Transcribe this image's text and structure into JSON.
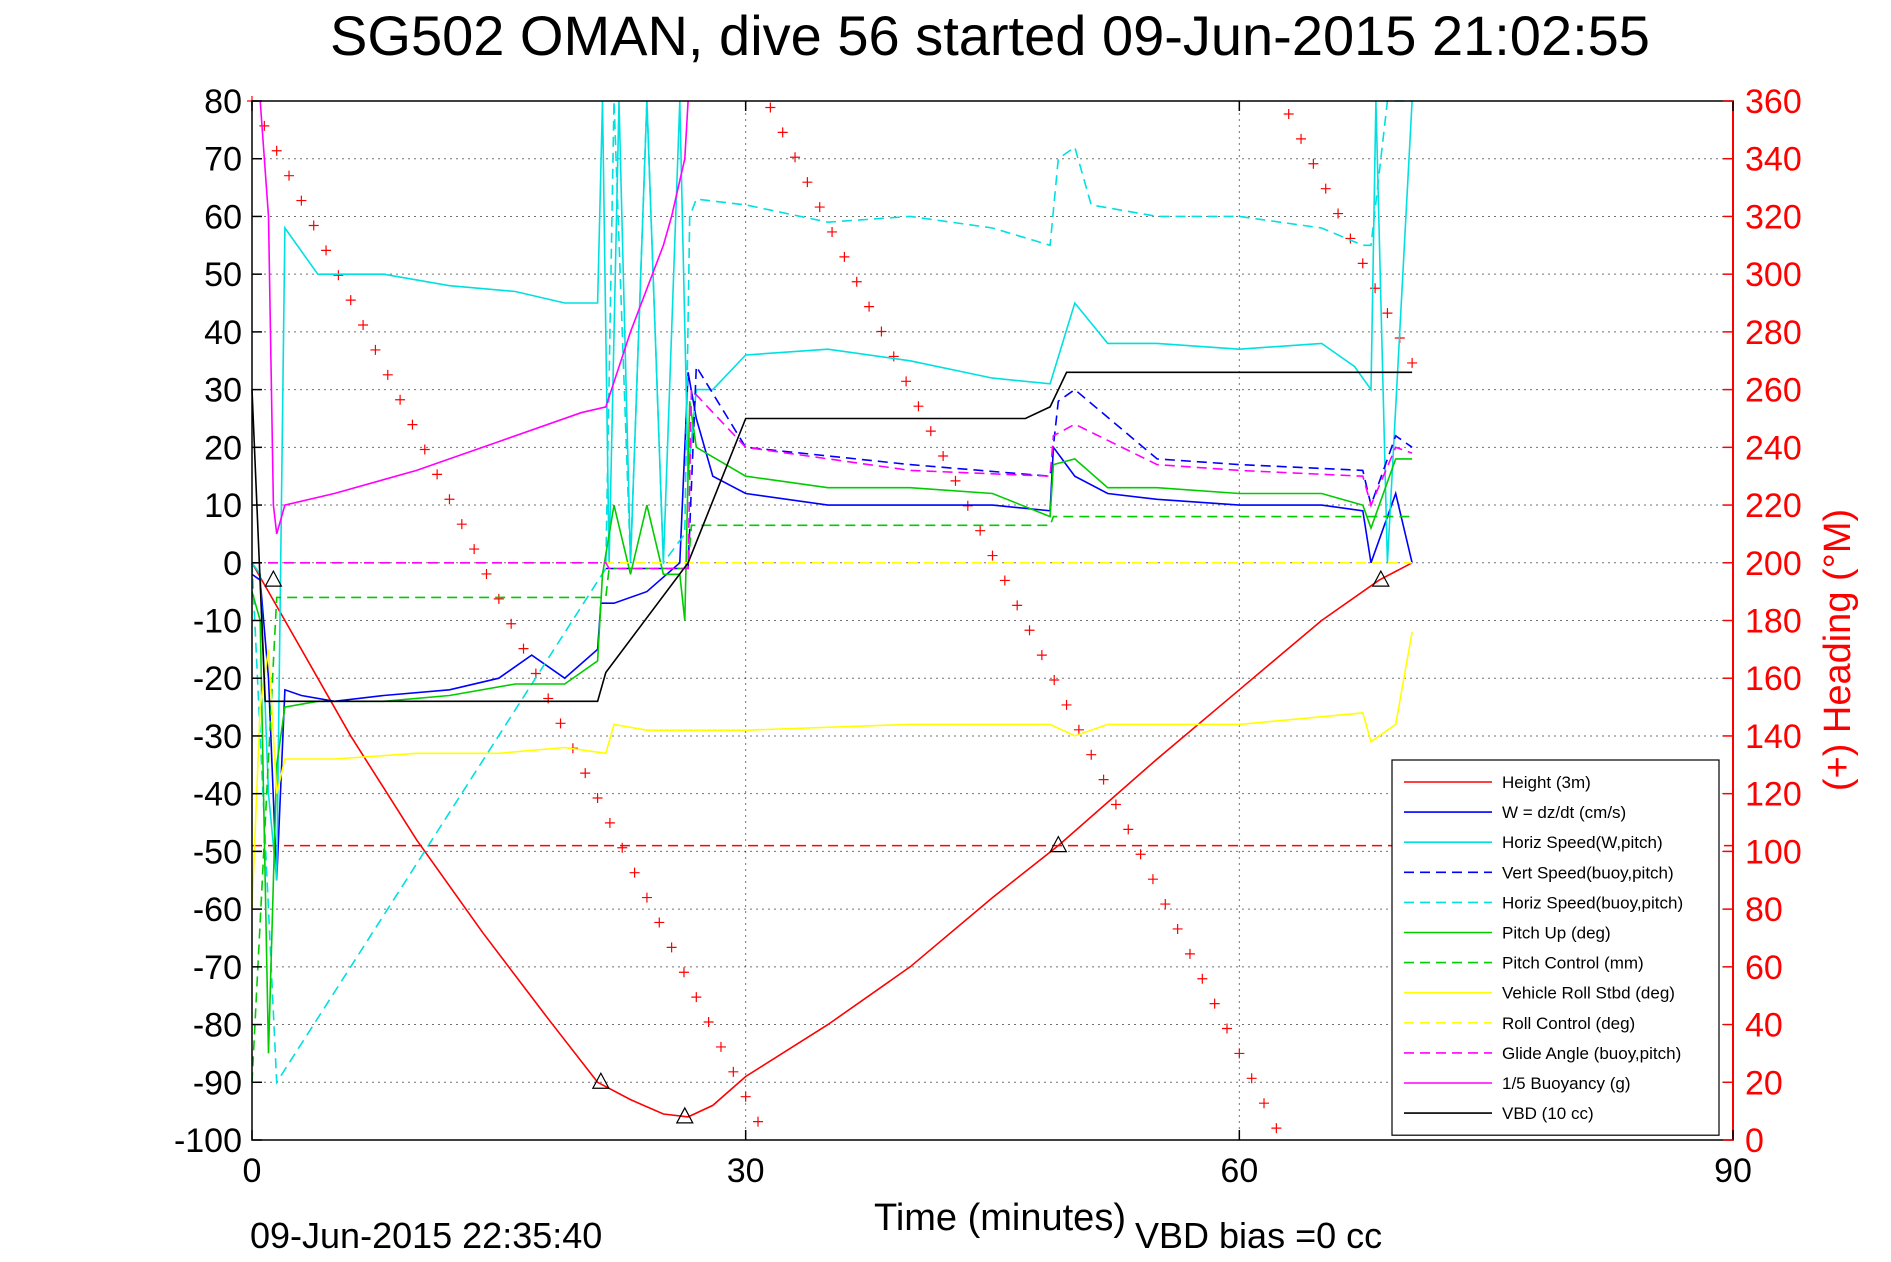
{
  "chart_data": {
    "type": "line",
    "title": "SG502 OMAN, dive 56 started 09-Jun-2015 21:02:55",
    "xlabel": "Time (minutes)",
    "ylabel_right": "(+) Heading (°M)",
    "xlim": [
      0,
      90
    ],
    "ylim": [
      -100,
      80
    ],
    "ylim_right": [
      0,
      360
    ],
    "x_ticks": [
      "0",
      "30",
      "60",
      "90"
    ],
    "y_ticks": [
      "80",
      "70",
      "60",
      "50",
      "40",
      "30",
      "20",
      "10",
      "0",
      "-10",
      "-20",
      "-30",
      "-40",
      "-50",
      "-60",
      "-70",
      "-80",
      "-90",
      "-100"
    ],
    "y_ticks_right": [
      "360",
      "340",
      "320",
      "300",
      "280",
      "260",
      "240",
      "220",
      "200",
      "180",
      "160",
      "140",
      "120",
      "100",
      "80",
      "60",
      "40",
      "20",
      "0"
    ],
    "grid": true,
    "legend_position": "bottom-right",
    "footer_left": "09-Jun-2015 22:35:40",
    "footer_right": "VBD bias =0 cc",
    "series": [
      {
        "name": "Height (3m)",
        "color": "#ff0000",
        "style": "solid",
        "x": [
          0,
          2,
          6,
          10,
          14,
          18,
          21,
          23,
          25,
          26.5,
          28,
          30,
          35,
          40,
          45,
          49,
          55,
          60,
          65,
          68.5,
          70.5
        ],
        "y": [
          0,
          -10,
          -30,
          -48,
          -64,
          -79,
          -90,
          -93,
          -95.5,
          -96,
          -94,
          -89,
          -80,
          -70,
          -58,
          -49,
          -34,
          -22,
          -10,
          -3,
          0
        ]
      },
      {
        "name": "W = dz/dt (cm/s)",
        "color": "#0000ff",
        "style": "solid",
        "x": [
          0,
          0.5,
          1,
          1.5,
          2,
          3,
          5,
          8,
          12,
          15,
          17,
          19,
          21,
          21.2,
          22,
          24,
          26,
          26.5,
          27,
          28,
          30,
          35,
          40,
          45,
          48.5,
          48.7,
          50,
          52,
          55,
          60,
          65,
          67.5,
          68,
          69.5,
          70.5
        ],
        "y": [
          -2,
          -3,
          -20,
          -55,
          -22,
          -23,
          -24,
          -23,
          -22,
          -20,
          -16,
          -20,
          -15,
          -7,
          -7,
          -5,
          0,
          33,
          25,
          15,
          12,
          10,
          10,
          10,
          9,
          20,
          15,
          12,
          11,
          10,
          10,
          9,
          0,
          12,
          0
        ]
      },
      {
        "name": "Horiz Speed(W,pitch)",
        "color": "#00e0e0",
        "style": "solid",
        "x": [
          0,
          0.5,
          1,
          1.5,
          2,
          4,
          8,
          12,
          16,
          19,
          21,
          21.3,
          21.7,
          22.3,
          23,
          24,
          25,
          26,
          26.5,
          27,
          28,
          30,
          35,
          40,
          45,
          48.5,
          50,
          52,
          55,
          60,
          65,
          67,
          68,
          68.3,
          69,
          70.5
        ],
        "y": [
          0,
          -2,
          -40,
          -55,
          58,
          50,
          50,
          48,
          47,
          45,
          45,
          80,
          0,
          80,
          0,
          80,
          0,
          80,
          15,
          30,
          30,
          36,
          37,
          35,
          32,
          31,
          45,
          38,
          38,
          37,
          38,
          34,
          30,
          80,
          0,
          80
        ]
      },
      {
        "name": "Vert Speed(buoy,pitch)",
        "color": "#0000ff",
        "style": "dashed",
        "x": [
          21.5,
          26.5,
          27,
          30,
          40,
          48.5,
          49,
          50,
          55,
          60,
          67.5,
          68,
          69.5,
          70.5
        ],
        "y": [
          -1,
          -1,
          34,
          20,
          17,
          15,
          28,
          30,
          18,
          17,
          16,
          10,
          22,
          20
        ]
      },
      {
        "name": "Horiz Speed(buoy,pitch)",
        "color": "#00e0e0",
        "style": "dashed",
        "x": [
          0,
          1.5,
          21.5,
          22,
          23,
          24,
          25,
          26.3,
          26.6,
          27,
          30,
          35,
          40,
          45,
          48.5,
          49,
          50,
          51,
          55,
          60,
          65,
          67.5,
          68,
          69,
          70.5
        ],
        "y": [
          0,
          -90,
          -1,
          80,
          0,
          80,
          0,
          5,
          60,
          63,
          62,
          59,
          60,
          58,
          55,
          70,
          72,
          62,
          60,
          60,
          58,
          55,
          55,
          80,
          80
        ]
      },
      {
        "name": "Pitch Up (deg)",
        "color": "#00cc00",
        "style": "solid",
        "x": [
          0,
          0.5,
          1,
          1.5,
          2,
          4,
          8,
          12,
          16,
          19,
          21,
          21.3,
          22,
          23,
          24,
          25,
          26,
          26.3,
          26.6,
          27,
          30,
          35,
          40,
          45,
          48.5,
          48.7,
          50,
          52,
          55,
          60,
          65,
          67.5,
          68,
          69.5,
          70.5
        ],
        "y": [
          -5,
          -10,
          -85,
          -35,
          -25,
          -24,
          -24,
          -23,
          -21,
          -21,
          -17,
          -2,
          10,
          -2,
          10,
          -2,
          -2,
          -10,
          28,
          20,
          15,
          13,
          13,
          12,
          8,
          17,
          18,
          13,
          13,
          12,
          12,
          10,
          6,
          18,
          18
        ]
      },
      {
        "name": "Pitch Control (mm)",
        "color": "#00cc00",
        "style": "dashed",
        "x": [
          0,
          1.5,
          21.5,
          21.7,
          26.5,
          26.7,
          48.5,
          48.7,
          70.5
        ],
        "y": [
          -90,
          -6,
          -6,
          -1,
          -1,
          6.5,
          6.5,
          8,
          8
        ]
      },
      {
        "name": "Vehicle Roll Stbd (deg)",
        "color": "#ffff00",
        "style": "solid",
        "x": [
          0,
          0.5,
          1,
          1.5,
          2,
          5,
          10,
          15,
          19,
          21.5,
          22,
          24,
          30,
          40,
          48.5,
          50,
          52,
          60,
          67.5,
          68,
          69.5,
          70.5
        ],
        "y": [
          -60,
          -25,
          -15,
          -40,
          -34,
          -34,
          -33,
          -33,
          -32,
          -33,
          -28,
          -29,
          -29,
          -28,
          -28,
          -30,
          -28,
          -28,
          -26,
          -31,
          -28,
          -12
        ]
      },
      {
        "name": "Roll Control (deg)",
        "color": "#ffff00",
        "style": "dashed",
        "x": [
          0,
          70.5
        ],
        "y": [
          0,
          0
        ]
      },
      {
        "name": "Glide Angle (buoy,pitch)",
        "color": "#ff00ff",
        "style": "dashed",
        "x": [
          0,
          21.5,
          21.7,
          26.5,
          26.7,
          30,
          40,
          48.5,
          48.7,
          50,
          55,
          60,
          67.5,
          68,
          69.5,
          70.5
        ],
        "y": [
          0,
          0,
          -1,
          -1,
          30,
          20,
          16,
          15,
          22,
          24,
          17,
          16,
          15,
          10,
          20,
          19
        ]
      },
      {
        "name": "1/5 Buoyancy (g)",
        "color": "#ff00ff",
        "style": "solid",
        "x": [
          0.5,
          1,
          1.3,
          1.5,
          2,
          5,
          10,
          15,
          20,
          21.5,
          23,
          25,
          25.5,
          26.3,
          26.5
        ],
        "y": [
          80,
          60,
          10,
          5,
          10,
          12,
          16,
          21,
          26,
          27,
          40,
          55,
          60,
          70,
          80
        ]
      },
      {
        "name": "VBD (10 cc)",
        "color": "#000000",
        "style": "solid",
        "x": [
          0,
          0.8,
          1.5,
          21,
          21.5,
          26.5,
          30,
          47,
          48.5,
          49.5,
          70.5
        ],
        "y": [
          30,
          -24,
          -24,
          -24,
          -19,
          0,
          25,
          25,
          27,
          33,
          33
        ]
      }
    ],
    "heading_markers": {
      "name": "(+) Heading",
      "color": "#ff0000",
      "x_start": 0,
      "x_end": 70.5,
      "step_minutes": 0.75,
      "sweeps": 6,
      "values_deg": [
        300,
        150,
        20,
        330,
        260,
        110,
        40,
        350,
        200,
        90,
        10,
        280
      ]
    },
    "height_reference": {
      "label": "",
      "y": -49,
      "color": "#ff0000",
      "style": "dashed"
    },
    "triangle_markers": [
      {
        "x": 1.3,
        "y": -3
      },
      {
        "x": 21.2,
        "y": -90
      },
      {
        "x": 26.3,
        "y": -96
      },
      {
        "x": 49,
        "y": -49
      },
      {
        "x": 68.6,
        "y": -3
      }
    ]
  }
}
